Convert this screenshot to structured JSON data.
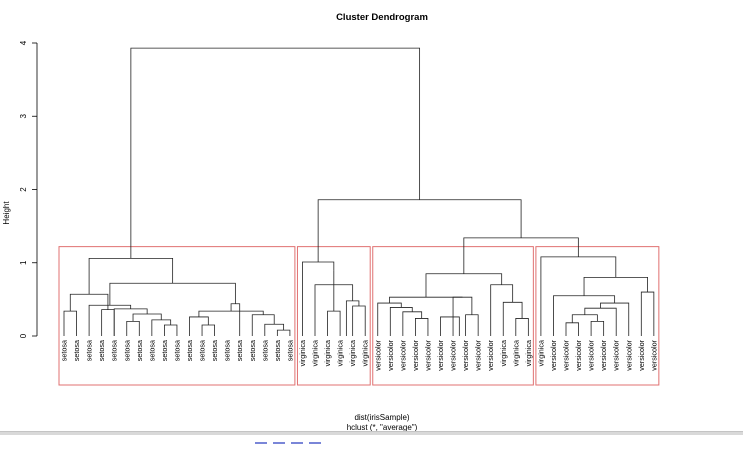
{
  "chart_data": {
    "type": "dendrogram",
    "title": "Cluster Dendrogram",
    "ylabel": "Height",
    "xlabel_lines": [
      "dist(irisSample)",
      "hclust (*, \"average\")"
    ],
    "ylim": [
      0,
      4
    ],
    "yticks": [
      0,
      1,
      2,
      3,
      4
    ],
    "highlight_color": "#e07070",
    "line_color": "#222222",
    "leaves": [
      "setosa",
      "setosa",
      "setosa",
      "setosa",
      "setosa",
      "setosa",
      "setosa",
      "setosa",
      "setosa",
      "setosa",
      "setosa",
      "setosa",
      "setosa",
      "setosa",
      "setosa",
      "setosa",
      "setosa",
      "setosa",
      "setosa",
      "virginica",
      "virginica",
      "virginica",
      "virginica",
      "virginica",
      "virginica",
      "versicolor",
      "versicolor",
      "versicolor",
      "versicolor",
      "versicolor",
      "versicolor",
      "versicolor",
      "versicolor",
      "versicolor",
      "versicolor",
      "virginica",
      "virginica",
      "virginica",
      "virginica",
      "versicolor",
      "versicolor",
      "versicolor",
      "versicolor",
      "versicolor",
      "versicolor",
      "versicolor",
      "versicolor",
      "versicolor"
    ],
    "merges": [
      {
        "a": 0,
        "b": 1,
        "h": 0.34
      },
      {
        "a": 3,
        "b": 4,
        "h": 0.36
      },
      {
        "a": "m0",
        "b": "m1",
        "h": 0.57
      },
      {
        "a": 17,
        "b": 18,
        "h": 0.08
      },
      {
        "a": 16,
        "b": "m3",
        "h": 0.16
      },
      {
        "a": 15,
        "b": "m4",
        "h": 0.29
      },
      {
        "a": 11,
        "b": 12,
        "h": 0.15
      },
      {
        "a": 10,
        "b": "m6",
        "h": 0.26
      },
      {
        "a": "m7",
        "b": "m5",
        "h": 0.34
      },
      {
        "a": 14,
        "b": "m8",
        "h": 0.44
      },
      {
        "a": 8,
        "b": 9,
        "h": 0.15
      },
      {
        "a": 7,
        "b": "m10",
        "h": 0.22
      },
      {
        "a": 5,
        "b": 6,
        "h": 0.2
      },
      {
        "a": "m12",
        "b": "m11",
        "h": 0.3
      },
      {
        "a": 4,
        "b": "m13",
        "h": 0.37
      },
      {
        "a": 2,
        "b": "m14",
        "h": 0.42
      },
      {
        "a": "m15",
        "b": "m9",
        "h": 0.72
      },
      {
        "a": "m2",
        "b": "m16",
        "h": 1.06
      },
      {
        "a": 21,
        "b": 22,
        "h": 0.34
      },
      {
        "a": 23,
        "b": 24,
        "h": 0.41
      },
      {
        "a": 22.5,
        "b": "m19",
        "h": 0.48
      },
      {
        "a": 20,
        "b": "m20",
        "h": 0.7
      },
      {
        "a": "m18",
        "b": "m21",
        "h": 0.9
      },
      {
        "a": 19,
        "b": "m22",
        "h": 1.01
      },
      {
        "a": 28,
        "b": 29,
        "h": 0.24
      },
      {
        "a": 27,
        "b": "m24",
        "h": 0.33
      },
      {
        "a": 26,
        "b": "m25",
        "h": 0.39
      },
      {
        "a": 25,
        "b": "m26",
        "h": 0.45
      },
      {
        "a": 32,
        "b": 33,
        "h": 0.29
      },
      {
        "a": 31,
        "b": "m28",
        "h": 0.53
      },
      {
        "a": 30,
        "b": 31.5,
        "h": 0.26
      },
      {
        "a": "m27",
        "b": "m29",
        "h": 0.53
      },
      {
        "a": 36,
        "b": 37,
        "h": 0.24
      },
      {
        "a": 35,
        "b": "m32",
        "h": 0.46
      },
      {
        "a": 34,
        "b": "m33",
        "h": 0.7
      },
      {
        "a": "m31",
        "b": "m34",
        "h": 0.85
      },
      {
        "a": 40,
        "b": 41,
        "h": 0.18
      },
      {
        "a": 42,
        "b": 43,
        "h": 0.2
      },
      {
        "a": "m36",
        "b": "m37",
        "h": 0.29
      },
      {
        "a": "m38",
        "b": 44,
        "h": 0.38
      },
      {
        "a": "m39",
        "b": 45,
        "h": 0.45
      },
      {
        "a": 39,
        "b": "m40",
        "h": 0.55
      },
      {
        "a": 46,
        "b": 47,
        "h": 0.6
      },
      {
        "a": "m41",
        "b": "m42",
        "h": 0.8
      },
      {
        "a": 38,
        "b": "m43",
        "h": 1.08
      },
      {
        "a": "m35",
        "b": "m44",
        "h": 1.34
      },
      {
        "a": "m23",
        "b": "m45",
        "h": 1.86
      },
      {
        "a": "m17",
        "b": "m46",
        "h": 3.93
      }
    ],
    "cluster_boxes": [
      {
        "first": 0,
        "last": 18
      },
      {
        "first": 19,
        "last": 24
      },
      {
        "first": 25,
        "last": 37
      },
      {
        "first": 38,
        "last": 47
      }
    ],
    "cut_height": 1.22
  }
}
